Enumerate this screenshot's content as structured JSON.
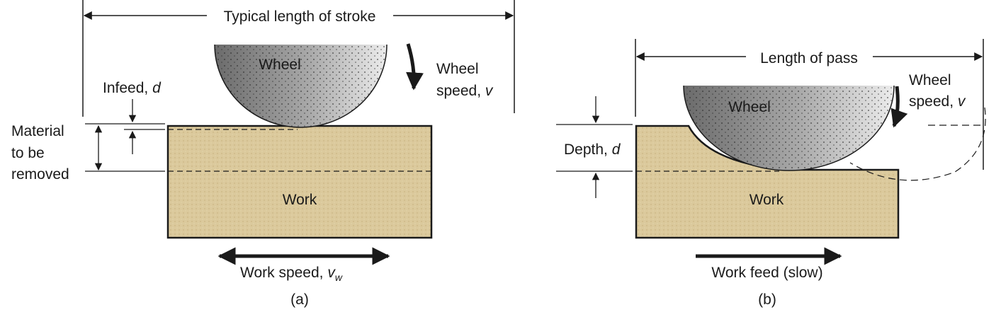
{
  "panel_a": {
    "stroke_label": "Typical length of stroke",
    "wheel_label": "Wheel",
    "wheel_speed_line1": "Wheel",
    "wheel_speed_line2": "speed, ",
    "wheel_speed_var": "v",
    "infeed_text": "Infeed, ",
    "infeed_var": "d",
    "material_line1": "Material",
    "material_line2": "to be",
    "material_line3": "removed",
    "work_label": "Work",
    "work_speed_text": "Work speed, ",
    "work_speed_var": "v",
    "work_speed_sub": "w",
    "caption": "(a)"
  },
  "panel_b": {
    "pass_label": "Length of pass",
    "wheel_label": "Wheel",
    "wheel_speed_line1": "Wheel",
    "wheel_speed_line2": "speed, ",
    "wheel_speed_var": "v",
    "depth_text": "Depth, ",
    "depth_var": "d",
    "work_label": "Work",
    "work_feed_label": "Work feed (slow)",
    "caption": "(b)"
  },
  "colors": {
    "work_fill": "#d9c79a",
    "wheel_dark": "#6f6f6f",
    "wheel_light": "#e6e6e6",
    "line": "#1a1a1a"
  }
}
